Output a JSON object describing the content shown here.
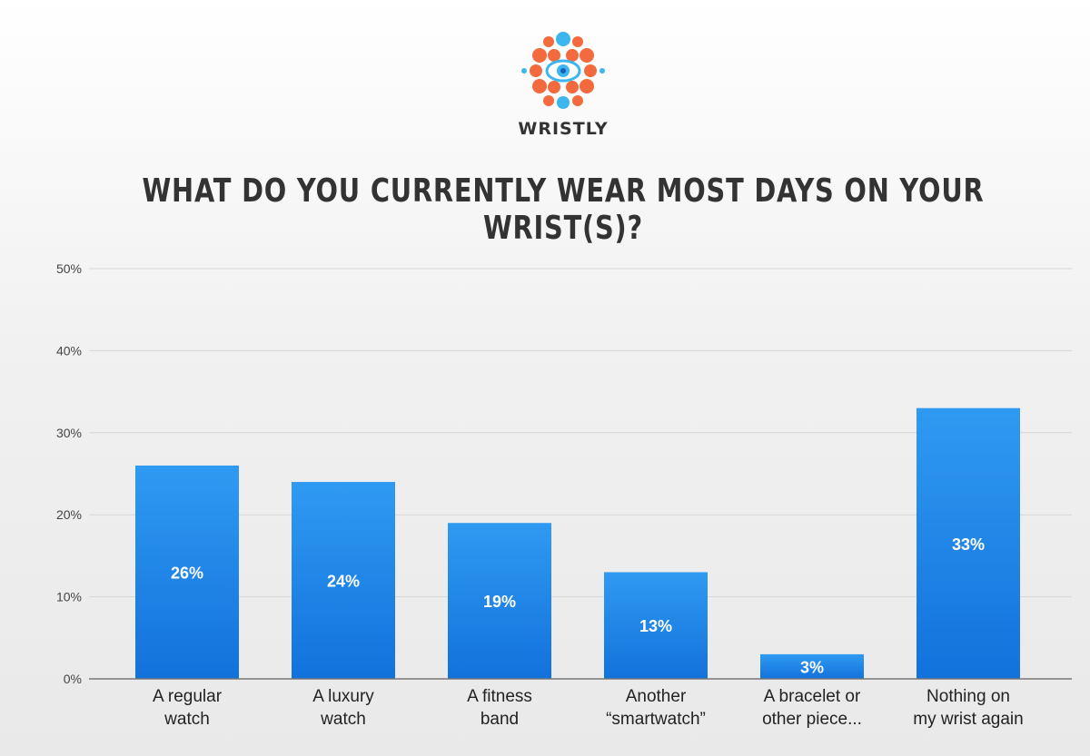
{
  "brand": {
    "name": "WRISTLY",
    "colors": {
      "orange": "#f26a3d",
      "blue": "#3cb6ee"
    }
  },
  "colors": {
    "bar_top": "#2f9af2",
    "bar_bottom": "#1272dc",
    "grid": "#d6d6d6",
    "axis": "#777777"
  },
  "chart_data": {
    "type": "bar",
    "title": "WHAT DO YOU CURRENTLY WEAR MOST DAYS ON YOUR WRIST(S)?",
    "xlabel": "",
    "ylabel": "",
    "ylim": [
      0,
      50
    ],
    "yticks": [
      0,
      10,
      20,
      30,
      40,
      50
    ],
    "ytick_labels": [
      "0%",
      "10%",
      "20%",
      "30%",
      "40%",
      "50%"
    ],
    "categories": [
      [
        "A regular",
        "watch"
      ],
      [
        "A luxury",
        "watch"
      ],
      [
        "A fitness",
        "band"
      ],
      [
        "Another",
        "“smartwatch”"
      ],
      [
        "A bracelet or",
        "other piece..."
      ],
      [
        "Nothing on",
        "my wrist again"
      ]
    ],
    "values": [
      26,
      24,
      19,
      13,
      3,
      33
    ],
    "value_labels": [
      "26%",
      "24%",
      "19%",
      "13%",
      "3%",
      "33%"
    ],
    "grid": true,
    "legend": "none"
  }
}
